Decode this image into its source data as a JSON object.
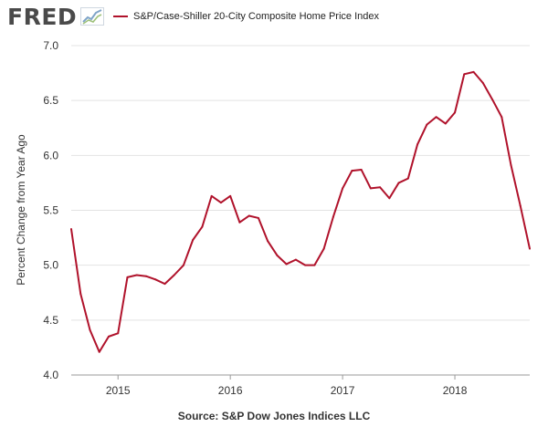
{
  "header": {
    "logo_text": "FRED",
    "logo_graph_icon": "line-chart-icon"
  },
  "chart_data": {
    "type": "line",
    "title": "",
    "ylabel": "Percent Change from Year Ago",
    "xlabel": "",
    "ylim": [
      4.0,
      7.0
    ],
    "yticks": [
      "4.0",
      "4.5",
      "5.0",
      "5.5",
      "6.0",
      "6.5",
      "7.0"
    ],
    "xlim": [
      "2014-08",
      "2018-09"
    ],
    "xticks": [
      {
        "label": "2015",
        "date": "2015-01"
      },
      {
        "label": "2016",
        "date": "2016-01"
      },
      {
        "label": "2017",
        "date": "2017-01"
      },
      {
        "label": "2018",
        "date": "2018-01"
      }
    ],
    "grid": "horizontal",
    "legend_position": "top-left",
    "series": [
      {
        "name": "S&P/Case-Shiller 20-City Composite Home Price Index",
        "color": "#b0122b",
        "x": [
          "2014-08",
          "2014-09",
          "2014-10",
          "2014-11",
          "2014-12",
          "2015-01",
          "2015-02",
          "2015-03",
          "2015-04",
          "2015-05",
          "2015-06",
          "2015-07",
          "2015-08",
          "2015-09",
          "2015-10",
          "2015-11",
          "2015-12",
          "2016-01",
          "2016-02",
          "2016-03",
          "2016-04",
          "2016-05",
          "2016-06",
          "2016-07",
          "2016-08",
          "2016-09",
          "2016-10",
          "2016-11",
          "2016-12",
          "2017-01",
          "2017-02",
          "2017-03",
          "2017-04",
          "2017-05",
          "2017-06",
          "2017-07",
          "2017-08",
          "2017-09",
          "2017-10",
          "2017-11",
          "2017-12",
          "2018-01",
          "2018-02",
          "2018-03",
          "2018-04",
          "2018-05",
          "2018-06",
          "2018-07",
          "2018-08",
          "2018-09"
        ],
        "values": [
          5.33,
          4.74,
          4.41,
          4.21,
          4.35,
          4.38,
          4.89,
          4.91,
          4.9,
          4.87,
          4.83,
          4.91,
          5.0,
          5.23,
          5.35,
          5.63,
          5.57,
          5.63,
          5.39,
          5.45,
          5.43,
          5.22,
          5.09,
          5.01,
          5.05,
          5.0,
          5.0,
          5.15,
          5.44,
          5.7,
          5.86,
          5.87,
          5.7,
          5.71,
          5.61,
          5.75,
          5.79,
          6.1,
          6.28,
          6.35,
          6.29,
          6.39,
          6.74,
          6.76,
          6.66,
          6.51,
          6.35,
          5.91,
          5.54,
          5.15
        ]
      }
    ]
  },
  "source": "Source: S&P Dow Jones Indices LLC"
}
